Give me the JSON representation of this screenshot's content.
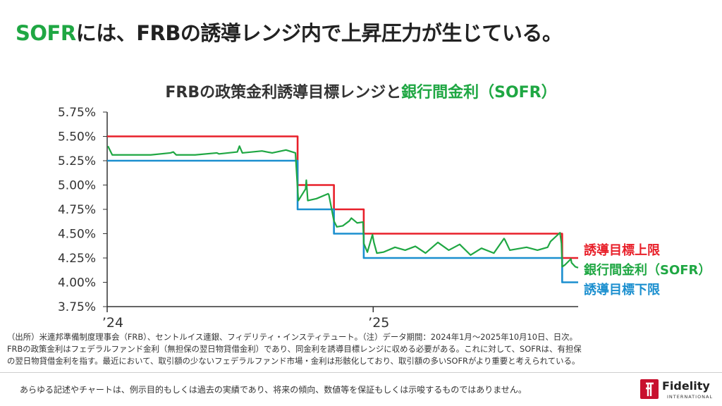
{
  "headline": {
    "accent": "SOFR",
    "rest": "には、FRBの誘導レンジ内で上昇圧力が生じている。"
  },
  "chart_title": {
    "main": "FRBの政策金利誘導目標レンジと",
    "accent": "銀行間金利（SOFR）"
  },
  "colors": {
    "upper": "#e8202a",
    "sofr": "#1fa743",
    "lower": "#1b8fcf",
    "axis": "#333333"
  },
  "chart_data": {
    "type": "line",
    "title": "FRBの政策金利誘導目標レンジと銀行間金利（SOFR）",
    "x_unit": "date",
    "x_range": [
      "2024-01-01",
      "2025-10-10"
    ],
    "x_ticks": [
      {
        "date": "2024-01-01",
        "label": "’24"
      },
      {
        "date": "2025-01-01",
        "label": "’25"
      }
    ],
    "ylim": [
      3.75,
      5.75
    ],
    "y_ticks": [
      "5.75%",
      "5.50%",
      "5.25%",
      "5.00%",
      "4.75%",
      "4.50%",
      "4.25%",
      "4.00%",
      "3.75%"
    ],
    "y_tick_values": [
      5.75,
      5.5,
      5.25,
      5.0,
      4.75,
      4.5,
      4.25,
      4.0,
      3.75
    ],
    "grid": false,
    "series": [
      {
        "name": "誘導目標上限",
        "color": "#e8202a",
        "step": true,
        "points": [
          {
            "x": "2024-01-01",
            "y": 5.5
          },
          {
            "x": "2024-09-19",
            "y": 5.0
          },
          {
            "x": "2024-11-08",
            "y": 4.75
          },
          {
            "x": "2024-12-19",
            "y": 4.5
          },
          {
            "x": "2025-09-18",
            "y": 4.25
          },
          {
            "x": "2025-10-10",
            "y": 4.25
          }
        ]
      },
      {
        "name": "誘導目標下限",
        "color": "#1b8fcf",
        "step": true,
        "points": [
          {
            "x": "2024-01-01",
            "y": 5.25
          },
          {
            "x": "2024-09-19",
            "y": 4.75
          },
          {
            "x": "2024-11-08",
            "y": 4.5
          },
          {
            "x": "2024-12-19",
            "y": 4.25
          },
          {
            "x": "2025-09-18",
            "y": 4.0
          },
          {
            "x": "2025-10-10",
            "y": 4.0
          }
        ]
      },
      {
        "name": "銀行間金利（SOFR）",
        "color": "#1fa743",
        "step": false,
        "points": [
          {
            "x": "2024-01-02",
            "y": 5.4
          },
          {
            "x": "2024-01-08",
            "y": 5.31
          },
          {
            "x": "2024-02-01",
            "y": 5.31
          },
          {
            "x": "2024-03-01",
            "y": 5.31
          },
          {
            "x": "2024-03-28",
            "y": 5.33
          },
          {
            "x": "2024-04-01",
            "y": 5.34
          },
          {
            "x": "2024-04-05",
            "y": 5.31
          },
          {
            "x": "2024-05-01",
            "y": 5.31
          },
          {
            "x": "2024-05-31",
            "y": 5.33
          },
          {
            "x": "2024-06-03",
            "y": 5.32
          },
          {
            "x": "2024-06-28",
            "y": 5.34
          },
          {
            "x": "2024-07-01",
            "y": 5.4
          },
          {
            "x": "2024-07-05",
            "y": 5.33
          },
          {
            "x": "2024-08-01",
            "y": 5.35
          },
          {
            "x": "2024-08-15",
            "y": 5.33
          },
          {
            "x": "2024-09-03",
            "y": 5.36
          },
          {
            "x": "2024-09-16",
            "y": 5.33
          },
          {
            "x": "2024-09-19",
            "y": 4.96
          },
          {
            "x": "2024-09-20",
            "y": 4.84
          },
          {
            "x": "2024-09-30",
            "y": 4.96
          },
          {
            "x": "2024-10-01",
            "y": 5.05
          },
          {
            "x": "2024-10-03",
            "y": 4.84
          },
          {
            "x": "2024-10-15",
            "y": 4.86
          },
          {
            "x": "2024-10-31",
            "y": 4.91
          },
          {
            "x": "2024-11-01",
            "y": 4.9
          },
          {
            "x": "2024-11-08",
            "y": 4.63
          },
          {
            "x": "2024-11-12",
            "y": 4.57
          },
          {
            "x": "2024-11-20",
            "y": 4.58
          },
          {
            "x": "2024-11-29",
            "y": 4.63
          },
          {
            "x": "2024-12-02",
            "y": 4.66
          },
          {
            "x": "2024-12-10",
            "y": 4.61
          },
          {
            "x": "2024-12-18",
            "y": 4.62
          },
          {
            "x": "2024-12-19",
            "y": 4.4
          },
          {
            "x": "2024-12-24",
            "y": 4.31
          },
          {
            "x": "2024-12-31",
            "y": 4.49
          },
          {
            "x": "2025-01-02",
            "y": 4.41
          },
          {
            "x": "2025-01-06",
            "y": 4.3
          },
          {
            "x": "2025-01-15",
            "y": 4.31
          },
          {
            "x": "2025-01-31",
            "y": 4.36
          },
          {
            "x": "2025-02-14",
            "y": 4.33
          },
          {
            "x": "2025-02-28",
            "y": 4.37
          },
          {
            "x": "2025-03-14",
            "y": 4.3
          },
          {
            "x": "2025-03-31",
            "y": 4.41
          },
          {
            "x": "2025-04-15",
            "y": 4.33
          },
          {
            "x": "2025-04-30",
            "y": 4.39
          },
          {
            "x": "2025-05-15",
            "y": 4.28
          },
          {
            "x": "2025-05-30",
            "y": 4.35
          },
          {
            "x": "2025-06-16",
            "y": 4.3
          },
          {
            "x": "2025-06-30",
            "y": 4.45
          },
          {
            "x": "2025-07-01",
            "y": 4.44
          },
          {
            "x": "2025-07-08",
            "y": 4.33
          },
          {
            "x": "2025-07-31",
            "y": 4.36
          },
          {
            "x": "2025-08-15",
            "y": 4.33
          },
          {
            "x": "2025-08-29",
            "y": 4.36
          },
          {
            "x": "2025-09-02",
            "y": 4.42
          },
          {
            "x": "2025-09-15",
            "y": 4.51
          },
          {
            "x": "2025-09-17",
            "y": 4.4
          },
          {
            "x": "2025-09-18",
            "y": 4.16
          },
          {
            "x": "2025-09-22",
            "y": 4.18
          },
          {
            "x": "2025-09-30",
            "y": 4.24
          },
          {
            "x": "2025-10-01",
            "y": 4.2
          },
          {
            "x": "2025-10-06",
            "y": 4.16
          },
          {
            "x": "2025-10-10",
            "y": 4.15
          }
        ]
      }
    ]
  },
  "series_labels": {
    "upper": "誘導目標上限",
    "sofr": "銀行間金利（SOFR）",
    "lower": "誘導目標下限"
  },
  "notes": [
    "（出所）米連邦準備制度理事会（FRB）、セントルイス連銀、フィデリティ・インスティテュート。（注）データ期間：2024年1月～2025年10月10日、日次。",
    "FRBの政策金利はフェデラルファンド金利（無担保の翌日物貸借金利）であり、同金利を誘導目標レンジに収める必要がある。これに対して、SOFRは、有担保",
    "の翌日物貸借金利を指す。最近において、取引額の少ないフェデラルファンド市場・金利は形骸化しており、取引額の多いSOFRがより重要と考えられている。"
  ],
  "disclaimer": "あらゆる記述やチャートは、例示目的もしくは過去の実績であり、将来の傾向、数値等を保証もしくは示唆するものではありません。",
  "logo": {
    "name": "Fidelity",
    "sub": "INTERNATIONAL"
  }
}
